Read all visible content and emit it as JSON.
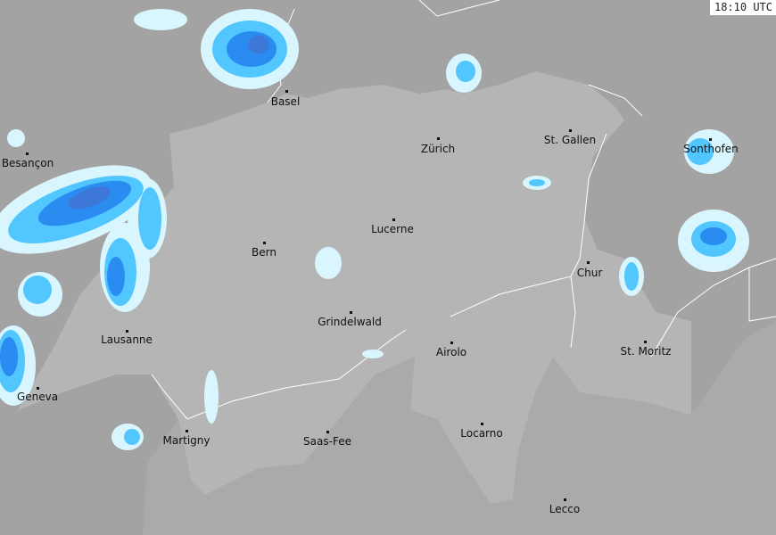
{
  "timestamp": "18:10 UTC",
  "colors": {
    "background": "#a3a3a3",
    "switzerland": "#b5b5b5",
    "neighbor_region": "#aaaaaa",
    "rivers_borders": "#ffffff",
    "echo_light": "#d9f6ff",
    "echo_medium": "#52c6ff",
    "echo_strong": "#2a8cf0",
    "echo_heavy": "#3d78d8"
  },
  "cities": [
    {
      "name": "Basel"
    },
    {
      "name": "Besançon"
    },
    {
      "name": "Zürich"
    },
    {
      "name": "St. Gallen"
    },
    {
      "name": "Sonthofen"
    },
    {
      "name": "Lucerne"
    },
    {
      "name": "Bern"
    },
    {
      "name": "Chur"
    },
    {
      "name": "Grindelwald"
    },
    {
      "name": "Lausanne"
    },
    {
      "name": "Airolo"
    },
    {
      "name": "St. Moritz"
    },
    {
      "name": "Geneva"
    },
    {
      "name": "Martigny"
    },
    {
      "name": "Saas-Fee"
    },
    {
      "name": "Locarno"
    },
    {
      "name": "Lecco"
    }
  ]
}
